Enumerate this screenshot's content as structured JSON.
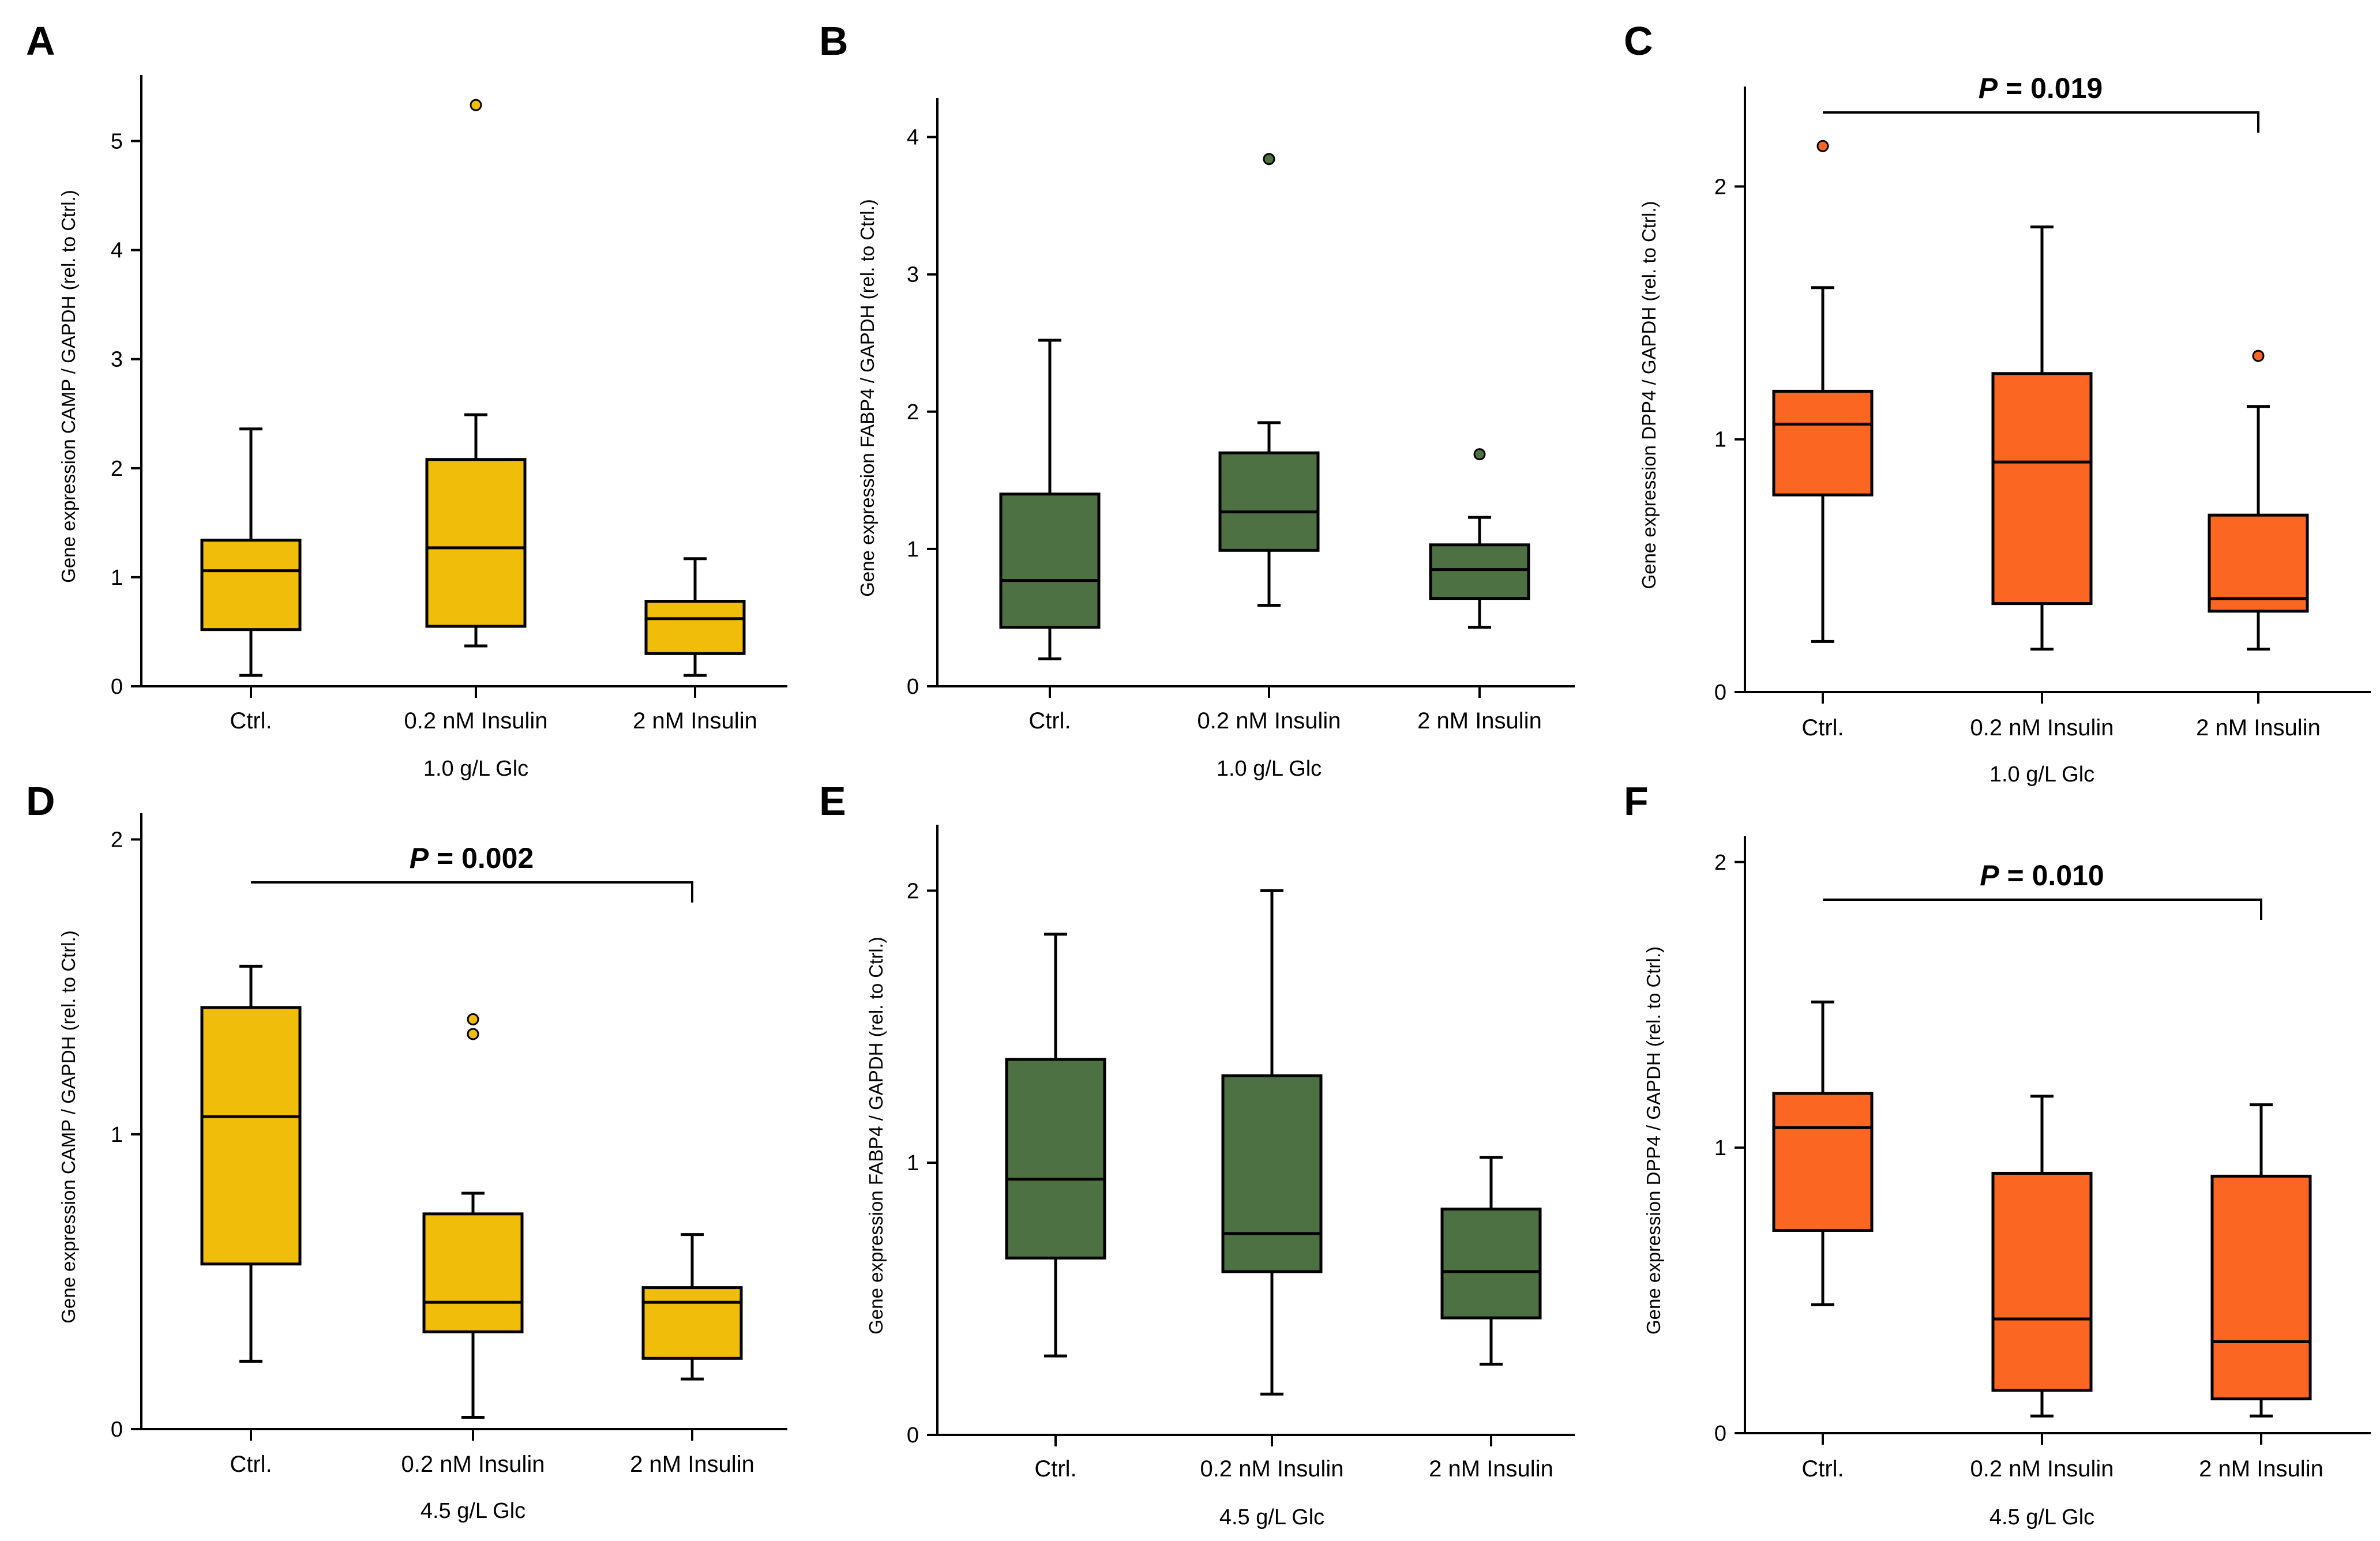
{
  "colors": {
    "yellow": "#F0BE0A",
    "green": "#4E7144",
    "orange": "#FC6623",
    "outlier_yellow": "#F0BE0A",
    "outlier_green": "#4E7144",
    "outlier_orange": "#FC6623"
  },
  "chart_data": [
    {
      "panel": "A",
      "type": "box",
      "color": "yellow",
      "ylabel": "Gene expression CAMP / GAPDH (rel. to Ctrl.)",
      "ylim": [
        0,
        5.5
      ],
      "yticks": [
        0,
        1,
        2,
        3,
        4,
        5
      ],
      "categories": [
        "Ctrl.",
        "0.2 nM Insulin",
        "2 nM Insulin"
      ],
      "group_label": "1.0 g/L Glc",
      "boxes": [
        {
          "min": 0.1,
          "q1": 0.52,
          "median": 1.06,
          "q3": 1.34,
          "max": 2.36,
          "outliers": []
        },
        {
          "min": 0.37,
          "q1": 0.55,
          "median": 1.27,
          "q3": 2.08,
          "max": 2.49,
          "outliers": [
            5.33
          ]
        },
        {
          "min": 0.1,
          "q1": 0.3,
          "median": 0.62,
          "q3": 0.78,
          "max": 1.17,
          "outliers": []
        }
      ]
    },
    {
      "panel": "B",
      "type": "box",
      "color": "green",
      "ylabel": "Gene expression FABP4 / GAPDH (rel. to Ctrl.)",
      "ylim": [
        0,
        4.2
      ],
      "yticks": [
        0,
        1,
        2,
        3,
        4
      ],
      "categories": [
        "Ctrl.",
        "0.2 nM Insulin",
        "2 nM Insulin"
      ],
      "group_label": "1.0 g/L Glc",
      "boxes": [
        {
          "min": 0.2,
          "q1": 0.43,
          "median": 0.77,
          "q3": 1.4,
          "max": 2.52,
          "outliers": []
        },
        {
          "min": 0.59,
          "q1": 0.99,
          "median": 1.27,
          "q3": 1.7,
          "max": 1.92,
          "outliers": [
            3.84
          ]
        },
        {
          "min": 0.43,
          "q1": 0.64,
          "median": 0.85,
          "q3": 1.03,
          "max": 1.23,
          "outliers": [
            1.69
          ]
        }
      ]
    },
    {
      "panel": "C",
      "type": "box",
      "color": "orange",
      "ylabel": "Gene expression DPP4 / GAPDH (rel. to Ctrl.)",
      "ylim": [
        0,
        2.35
      ],
      "yticks": [
        0,
        1,
        2
      ],
      "categories": [
        "Ctrl.",
        "0.2 nM Insulin",
        "2 nM Insulin"
      ],
      "group_label": "1.0 g/L Glc",
      "significance": {
        "text_p": "P",
        "text_value": " = 0.019",
        "between": [
          0,
          2
        ]
      },
      "boxes": [
        {
          "min": 0.2,
          "q1": 0.78,
          "median": 1.06,
          "q3": 1.19,
          "max": 1.6,
          "outliers": [
            2.16
          ]
        },
        {
          "min": 0.17,
          "q1": 0.35,
          "median": 0.91,
          "q3": 1.26,
          "max": 1.84,
          "outliers": []
        },
        {
          "min": 0.17,
          "q1": 0.32,
          "median": 0.37,
          "q3": 0.7,
          "max": 1.13,
          "outliers": [
            1.33
          ]
        }
      ]
    },
    {
      "panel": "D",
      "type": "box",
      "color": "yellow",
      "ylabel": "Gene expression CAMP / GAPDH (rel. to Ctrl.)",
      "ylim": [
        0,
        2.05
      ],
      "yticks": [
        0,
        1,
        2
      ],
      "categories": [
        "Ctrl.",
        "0.2 nM Insulin",
        "2 nM Insulin"
      ],
      "group_label": "4.5 g/L Glc",
      "significance": {
        "text_p": "P",
        "text_value": " = 0.002",
        "between": [
          0,
          2
        ]
      },
      "boxes": [
        {
          "min": 0.23,
          "q1": 0.56,
          "median": 1.06,
          "q3": 1.43,
          "max": 1.57,
          "outliers": []
        },
        {
          "min": 0.04,
          "q1": 0.33,
          "median": 0.43,
          "q3": 0.73,
          "max": 0.8,
          "outliers": [
            1.39,
            1.34
          ]
        },
        {
          "min": 0.17,
          "q1": 0.24,
          "median": 0.43,
          "q3": 0.48,
          "max": 0.66,
          "outliers": []
        }
      ]
    },
    {
      "panel": "E",
      "type": "box",
      "color": "green",
      "ylabel": "Gene expression FABP4 / GAPDH (rel. to Ctrl.)",
      "ylim": [
        0,
        2.2
      ],
      "yticks": [
        0,
        1,
        2
      ],
      "categories": [
        "Ctrl.",
        "0.2 nM Insulin",
        "2 nM Insulin"
      ],
      "group_label": "4.5 g/L Glc",
      "boxes": [
        {
          "min": 0.29,
          "q1": 0.65,
          "median": 0.94,
          "q3": 1.38,
          "max": 1.84,
          "outliers": []
        },
        {
          "min": 0.15,
          "q1": 0.6,
          "median": 0.74,
          "q3": 1.32,
          "max": 2.0,
          "outliers": []
        },
        {
          "min": 0.26,
          "q1": 0.43,
          "median": 0.6,
          "q3": 0.83,
          "max": 1.02,
          "outliers": []
        }
      ]
    },
    {
      "panel": "F",
      "type": "box",
      "color": "orange",
      "ylabel": "Gene expression DPP4 / GAPDH (rel. to Ctrl.)",
      "ylim": [
        0,
        2.05
      ],
      "yticks": [
        0,
        1,
        2
      ],
      "categories": [
        "Ctrl.",
        "0.2 nM Insulin",
        "2 nM Insulin"
      ],
      "group_label": "4.5 g/L Glc",
      "significance": {
        "text_p": "P",
        "text_value": " = 0.010",
        "between": [
          0,
          2
        ]
      },
      "boxes": [
        {
          "min": 0.45,
          "q1": 0.71,
          "median": 1.07,
          "q3": 1.19,
          "max": 1.51,
          "outliers": []
        },
        {
          "min": 0.06,
          "q1": 0.15,
          "median": 0.4,
          "q3": 0.91,
          "max": 1.18,
          "outliers": []
        },
        {
          "min": 0.06,
          "q1": 0.12,
          "median": 0.32,
          "q3": 0.9,
          "max": 1.15,
          "outliers": []
        }
      ]
    }
  ]
}
